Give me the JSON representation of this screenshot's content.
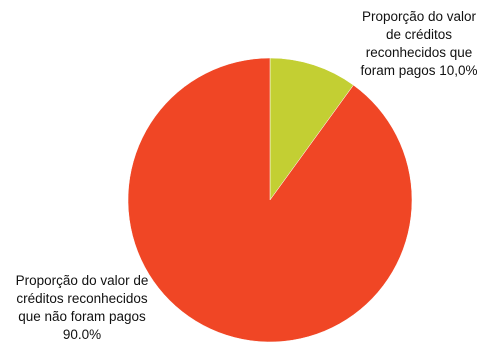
{
  "chart_data": {
    "type": "pie",
    "title": "",
    "slices": [
      {
        "label": "Proporção do valor de créditos reconhecidos que foram pagos 10,0%",
        "value": 10.0,
        "color": "#c3cf33"
      },
      {
        "label": "Proporção do valor de créditos reconhecidos que não foram pagos 90.0%",
        "value": 90.0,
        "color": "#f04625"
      }
    ],
    "labels": {
      "paid": [
        "Proporção do valor",
        "de créditos",
        "reconhecidos que",
        "foram pagos 10,0%"
      ],
      "unpaid": [
        "Proporção do valor de",
        "créditos reconhecidos",
        "que não foram pagos",
        "90.0%"
      ]
    },
    "legend": "none"
  }
}
